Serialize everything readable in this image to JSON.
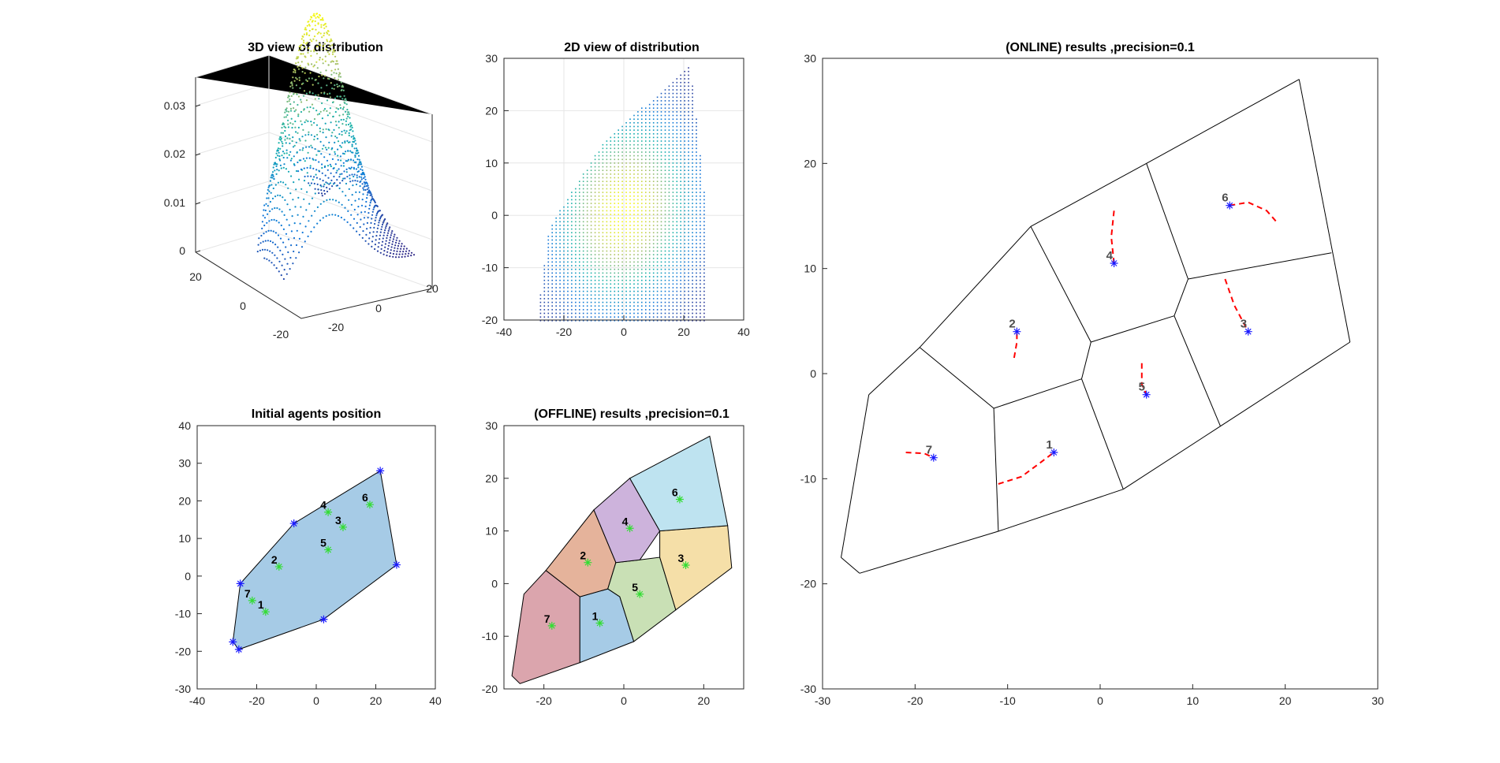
{
  "chart_data": [
    {
      "type": "scatter",
      "title": "3D view of distribution",
      "description": "3D surface of a Gaussian density masked to the polygon region",
      "z_ticks": [
        "0",
        "0.01",
        "0.02",
        "0.03"
      ],
      "x_ticks": [
        "-20",
        "0",
        "20"
      ],
      "y_ticks": [
        "20",
        "0",
        "-20"
      ],
      "zlim": [
        0,
        0.03
      ],
      "grid": true
    },
    {
      "type": "scatter",
      "title": "2D view of distribution",
      "xlim": [
        -40,
        40
      ],
      "ylim": [
        -20,
        30
      ],
      "x_ticks": [
        "-40",
        "-20",
        "0",
        "20",
        "40"
      ],
      "y_ticks": [
        "-20",
        "-10",
        "0",
        "10",
        "20",
        "30"
      ],
      "grid": true,
      "region": [
        [
          -28,
          -20
        ],
        [
          -25,
          -2
        ],
        [
          -7,
          14
        ],
        [
          22,
          28
        ],
        [
          27,
          3
        ],
        [
          27,
          -20
        ]
      ],
      "peak": [
        0,
        1
      ]
    },
    {
      "type": "scatter",
      "title": "Initial agents position",
      "xlim": [
        -40,
        40
      ],
      "ylim": [
        -30,
        40
      ],
      "x_ticks": [
        "-40",
        "-20",
        "0",
        "20",
        "40"
      ],
      "y_ticks": [
        "-30",
        "-20",
        "-10",
        "0",
        "10",
        "20",
        "30",
        "40"
      ],
      "region_color": "#a6cbe6",
      "vertex_color": "#1a1aff",
      "agent_color": "#33dd33",
      "vertices": [
        [
          -28,
          -17.5
        ],
        [
          -25.5,
          -2
        ],
        [
          -7.5,
          14
        ],
        [
          21.5,
          28
        ],
        [
          27,
          3
        ],
        [
          2.5,
          -11.5
        ],
        [
          -26,
          -19.5
        ]
      ],
      "agents": [
        {
          "label": "1",
          "x": -17,
          "y": -9.5
        },
        {
          "label": "2",
          "x": -12.5,
          "y": 2.5
        },
        {
          "label": "3",
          "x": 9,
          "y": 13
        },
        {
          "label": "4",
          "x": 4,
          "y": 17
        },
        {
          "label": "5",
          "x": 4,
          "y": 7
        },
        {
          "label": "6",
          "x": 18,
          "y": 19
        },
        {
          "label": "7",
          "x": -21.5,
          "y": -6.5
        }
      ]
    },
    {
      "type": "scatter",
      "title": "(OFFLINE) results ,precision=0.1",
      "xlim": [
        -30,
        30
      ],
      "ylim": [
        -20,
        30
      ],
      "x_ticks": [
        "-20",
        "0",
        "20"
      ],
      "y_ticks": [
        "-20",
        "-10",
        "0",
        "10",
        "20",
        "30"
      ],
      "agent_color": "#33dd33",
      "cells": [
        {
          "label": "7",
          "color": "#dba5ad",
          "poly": [
            [
              -28,
              -17.5
            ],
            [
              -25,
              -2
            ],
            [
              -19.5,
              2.5
            ],
            [
              -11,
              -2.5
            ],
            [
              -11,
              -15
            ],
            [
              -26,
              -19
            ]
          ],
          "seed": [
            -18,
            -8
          ]
        },
        {
          "label": "1",
          "color": "#a6cbe6",
          "poly": [
            [
              -11,
              -2.5
            ],
            [
              -11,
              -15
            ],
            [
              2.5,
              -11
            ],
            [
              -1,
              -2.5
            ],
            [
              -4,
              -1
            ]
          ],
          "seed": [
            -6,
            -7.5
          ]
        },
        {
          "label": "2",
          "color": "#e5b39b",
          "poly": [
            [
              -19.5,
              2.5
            ],
            [
              -11,
              -2.5
            ],
            [
              -4,
              -1
            ],
            [
              -2,
              4
            ],
            [
              -7.5,
              14
            ]
          ],
          "seed": [
            -9,
            4
          ]
        },
        {
          "label": "5",
          "color": "#c9e0b5",
          "poly": [
            [
              -4,
              -1
            ],
            [
              -1,
              -2.5
            ],
            [
              2.5,
              -11
            ],
            [
              13,
              -5
            ],
            [
              9,
              5
            ],
            [
              4,
              4.5
            ],
            [
              -2,
              4
            ]
          ],
          "seed": [
            4,
            -2
          ]
        },
        {
          "label": "4",
          "color": "#cdb3dc",
          "poly": [
            [
              -7.5,
              14
            ],
            [
              1.5,
              20
            ],
            [
              9,
              10
            ],
            [
              4,
              4.5
            ],
            [
              -2,
              4
            ]
          ],
          "seed": [
            1.5,
            10.5
          ]
        },
        {
          "label": "3",
          "color": "#f5dfa8",
          "poly": [
            [
              9,
              10
            ],
            [
              26,
              11
            ],
            [
              27,
              3
            ],
            [
              13,
              -5
            ],
            [
              9,
              5
            ]
          ],
          "seed": [
            15.5,
            3.5
          ]
        },
        {
          "label": "6",
          "color": "#bee3f0",
          "poly": [
            [
              1.5,
              20
            ],
            [
              21.5,
              28
            ],
            [
              26,
              11
            ],
            [
              9,
              10
            ]
          ],
          "seed": [
            14,
            16
          ]
        }
      ]
    },
    {
      "type": "line",
      "title": "(ONLINE) results ,precision=0.1",
      "xlim": [
        -30,
        30
      ],
      "ylim": [
        -30,
        30
      ],
      "x_ticks": [
        "-30",
        "-20",
        "-10",
        "0",
        "10",
        "20",
        "30"
      ],
      "y_ticks": [
        "-30",
        "-20",
        "-10",
        "0",
        "10",
        "20",
        "30"
      ],
      "path_color": "#ff0000",
      "agent_color": "#1a1aff",
      "edges": [
        [
          [
            -28,
            -17.5
          ],
          [
            -25,
            -2
          ]
        ],
        [
          [
            -25,
            -2
          ],
          [
            -19.5,
            2.5
          ]
        ],
        [
          [
            -19.5,
            2.5
          ],
          [
            -7.5,
            14
          ]
        ],
        [
          [
            -7.5,
            14
          ],
          [
            5,
            20
          ]
        ],
        [
          [
            5,
            20
          ],
          [
            21.5,
            28
          ]
        ],
        [
          [
            21.5,
            28
          ],
          [
            27,
            3
          ]
        ],
        [
          [
            27,
            3
          ],
          [
            13,
            -5
          ]
        ],
        [
          [
            13,
            -5
          ],
          [
            2.5,
            -11
          ]
        ],
        [
          [
            2.5,
            -11
          ],
          [
            -11,
            -15
          ]
        ],
        [
          [
            -11,
            -15
          ],
          [
            -26,
            -19
          ]
        ],
        [
          [
            -26,
            -19
          ],
          [
            -28,
            -17.5
          ]
        ],
        [
          [
            -19.5,
            2.5
          ],
          [
            -11.5,
            -3.3
          ]
        ],
        [
          [
            -11.5,
            -3.3
          ],
          [
            -11,
            -15
          ]
        ],
        [
          [
            -11.5,
            -3.3
          ],
          [
            -2,
            -0.5
          ]
        ],
        [
          [
            -2,
            -0.5
          ],
          [
            2.5,
            -11
          ]
        ],
        [
          [
            -2,
            -0.5
          ],
          [
            -1,
            3
          ]
        ],
        [
          [
            -1,
            3
          ],
          [
            -7.5,
            14
          ]
        ],
        [
          [
            -1,
            3
          ],
          [
            8,
            5.5
          ]
        ],
        [
          [
            8,
            5.5
          ],
          [
            13,
            -5
          ]
        ],
        [
          [
            8,
            5.5
          ],
          [
            9.5,
            9
          ]
        ],
        [
          [
            9.5,
            9
          ],
          [
            5,
            20
          ]
        ],
        [
          [
            9.5,
            9
          ],
          [
            25,
            11.5
          ]
        ]
      ],
      "agents": [
        {
          "label": "1",
          "x": -5,
          "y": -7.5,
          "path": [
            [
              -11,
              -10.5
            ],
            [
              -8.5,
              -9.8
            ],
            [
              -6.5,
              -8.5
            ],
            [
              -5,
              -7.5
            ]
          ]
        },
        {
          "label": "2",
          "x": -9,
          "y": 4,
          "path": [
            [
              -9.3,
              1.5
            ],
            [
              -9,
              3
            ],
            [
              -9,
              4
            ]
          ]
        },
        {
          "label": "3",
          "x": 16,
          "y": 4,
          "path": [
            [
              13.5,
              9
            ],
            [
              14.5,
              6.5
            ],
            [
              16,
              4
            ]
          ]
        },
        {
          "label": "4",
          "x": 1.5,
          "y": 10.5,
          "path": [
            [
              1.5,
              15.5
            ],
            [
              1.2,
              13
            ],
            [
              1.5,
              10.5
            ]
          ]
        },
        {
          "label": "5",
          "x": 5,
          "y": -2,
          "path": [
            [
              4.5,
              1
            ],
            [
              4.5,
              -1
            ],
            [
              5,
              -2
            ]
          ]
        },
        {
          "label": "6",
          "x": 14,
          "y": 16,
          "path": [
            [
              14,
              16
            ],
            [
              16,
              16.3
            ],
            [
              18,
              15.5
            ],
            [
              19,
              14.5
            ]
          ]
        },
        {
          "label": "7",
          "x": -18,
          "y": -8,
          "path": [
            [
              -21,
              -7.5
            ],
            [
              -19,
              -7.6
            ],
            [
              -18,
              -8
            ]
          ]
        }
      ]
    }
  ]
}
